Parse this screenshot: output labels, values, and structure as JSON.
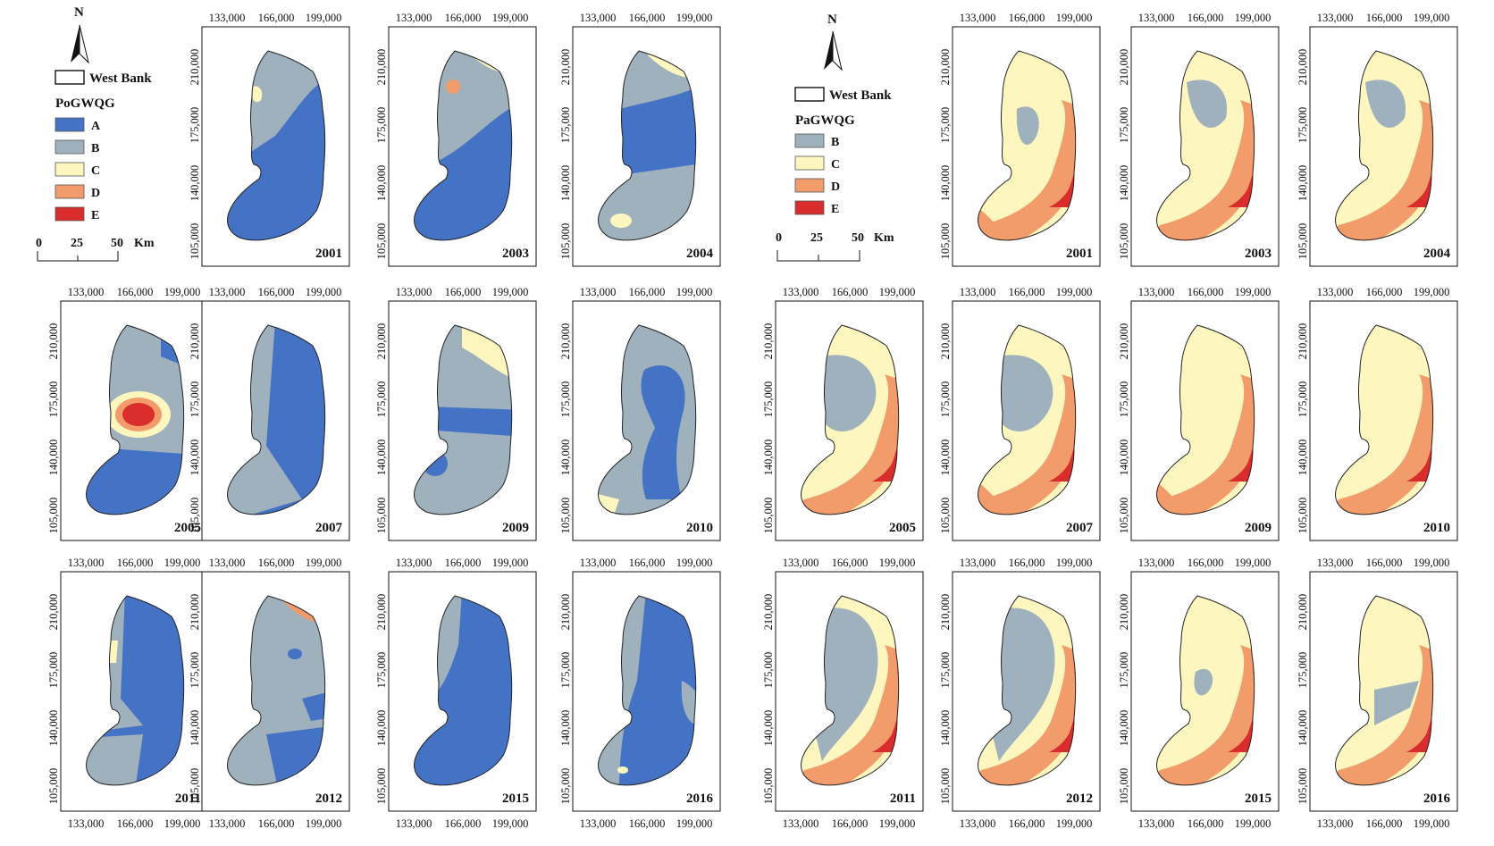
{
  "figure": {
    "type": "map-grid",
    "x_ticks": [
      "133,000",
      "166,000",
      "199,000"
    ],
    "y_ticks": [
      "210,000",
      "175,000",
      "140,000",
      "105,000"
    ]
  },
  "legends": {
    "po": {
      "north": "N",
      "boundary": "West Bank",
      "title": "PoGWQG",
      "classes": [
        {
          "label": "A",
          "color": "#4472c4"
        },
        {
          "label": "B",
          "color": "#9eb1bd"
        },
        {
          "label": "C",
          "color": "#fdf7bf"
        },
        {
          "label": "D",
          "color": "#f39c6b"
        },
        {
          "label": "E",
          "color": "#d92c2c"
        }
      ],
      "scale": {
        "ticks": [
          "0",
          "25",
          "50"
        ],
        "unit": "Km"
      }
    },
    "pa": {
      "north": "N",
      "boundary": "West Bank",
      "title": "PaGWQG",
      "classes": [
        {
          "label": "B",
          "color": "#9eb1bd"
        },
        {
          "label": "C",
          "color": "#fdf7bf"
        },
        {
          "label": "D",
          "color": "#f39c6b"
        },
        {
          "label": "E",
          "color": "#d92c2c"
        }
      ],
      "scale": {
        "ticks": [
          "0",
          "25",
          "50"
        ],
        "unit": "Km"
      }
    }
  },
  "panels": {
    "po": [
      {
        "year": "2001",
        "base": "A"
      },
      {
        "year": "2003",
        "base": "A"
      },
      {
        "year": "2004",
        "base": "A"
      },
      {
        "year": "2005",
        "base": "B"
      },
      {
        "year": "2007",
        "base": "A"
      },
      {
        "year": "2009",
        "base": "B"
      },
      {
        "year": "2010",
        "base": "B"
      },
      {
        "year": "2011",
        "base": "A"
      },
      {
        "year": "2012",
        "base": "B"
      },
      {
        "year": "2015",
        "base": "A"
      },
      {
        "year": "2016",
        "base": "A"
      }
    ],
    "pa": [
      {
        "year": "2001",
        "base": "C"
      },
      {
        "year": "2003",
        "base": "C"
      },
      {
        "year": "2004",
        "base": "C"
      },
      {
        "year": "2005",
        "base": "C"
      },
      {
        "year": "2007",
        "base": "C"
      },
      {
        "year": "2009",
        "base": "C"
      },
      {
        "year": "2010",
        "base": "C"
      },
      {
        "year": "2011",
        "base": "C"
      },
      {
        "year": "2012",
        "base": "C"
      },
      {
        "year": "2015",
        "base": "C"
      },
      {
        "year": "2016",
        "base": "C"
      }
    ]
  }
}
